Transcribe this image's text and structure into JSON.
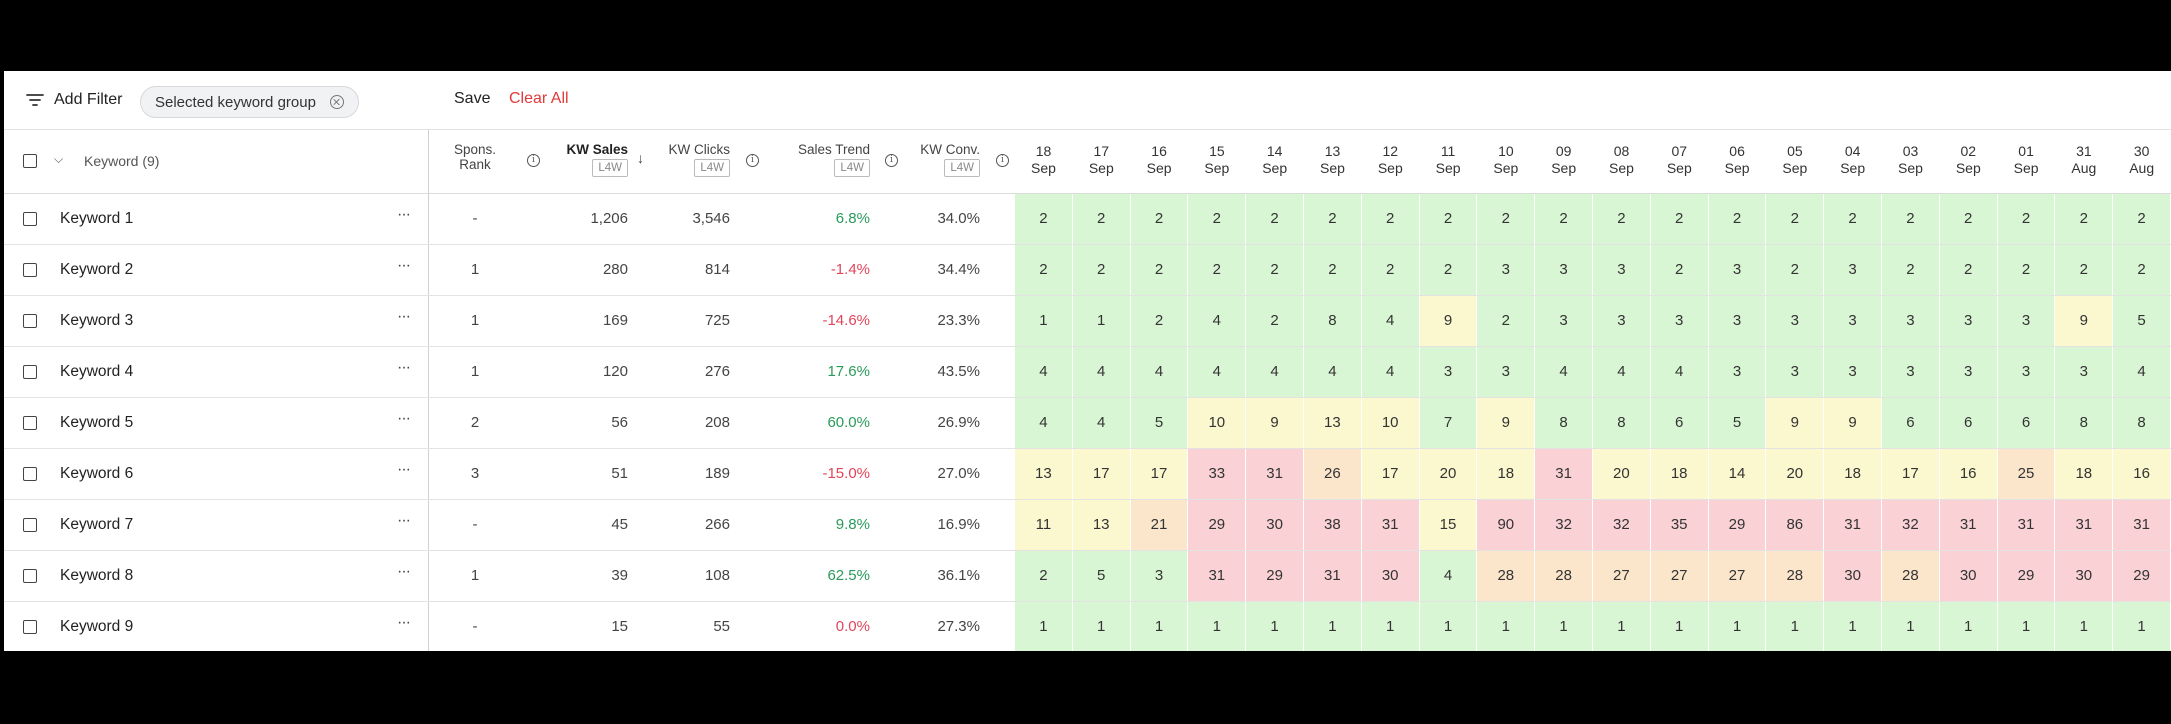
{
  "toolbar": {
    "add_filter": "Add Filter",
    "chip_label": "Selected keyword group",
    "save": "Save",
    "clear_all": "Clear All"
  },
  "header": {
    "keyword": "Keyword (9)",
    "spons_rank_1": "Spons.",
    "spons_rank_2": "Rank",
    "kw_sales": "KW Sales",
    "kw_clicks": "KW Clicks",
    "sales_trend": "Sales Trend",
    "kw_conv": "KW Conv.",
    "period": "L4W"
  },
  "dates": [
    [
      "18",
      "Sep"
    ],
    [
      "17",
      "Sep"
    ],
    [
      "16",
      "Sep"
    ],
    [
      "15",
      "Sep"
    ],
    [
      "14",
      "Sep"
    ],
    [
      "13",
      "Sep"
    ],
    [
      "12",
      "Sep"
    ],
    [
      "11",
      "Sep"
    ],
    [
      "10",
      "Sep"
    ],
    [
      "09",
      "Sep"
    ],
    [
      "08",
      "Sep"
    ],
    [
      "07",
      "Sep"
    ],
    [
      "06",
      "Sep"
    ],
    [
      "05",
      "Sep"
    ],
    [
      "04",
      "Sep"
    ],
    [
      "03",
      "Sep"
    ],
    [
      "02",
      "Sep"
    ],
    [
      "01",
      "Sep"
    ],
    [
      "31",
      "Aug"
    ],
    [
      "30",
      "Aug"
    ]
  ],
  "colors": {
    "green": "#d9f6d4",
    "yellow": "#fbf8cf",
    "peach": "#fbe6cc",
    "pink": "#fad2d6",
    "accent": "#e03a3a"
  },
  "rows": [
    {
      "name": "Keyword 1",
      "rank": "-",
      "sales": "1,206",
      "clicks": "3,546",
      "trend": "6.8%",
      "conv": "34.0%",
      "ranks": [
        2,
        2,
        2,
        2,
        2,
        2,
        2,
        2,
        2,
        2,
        2,
        2,
        2,
        2,
        2,
        2,
        2,
        2,
        2,
        2
      ]
    },
    {
      "name": "Keyword 2",
      "rank": "1",
      "sales": "280",
      "clicks": "814",
      "trend": "-1.4%",
      "conv": "34.4%",
      "ranks": [
        2,
        2,
        2,
        2,
        2,
        2,
        2,
        2,
        3,
        3,
        3,
        2,
        3,
        2,
        3,
        2,
        2,
        2,
        2,
        2
      ]
    },
    {
      "name": "Keyword 3",
      "rank": "1",
      "sales": "169",
      "clicks": "725",
      "trend": "-14.6%",
      "conv": "23.3%",
      "ranks": [
        1,
        1,
        2,
        4,
        2,
        8,
        4,
        9,
        2,
        3,
        3,
        3,
        3,
        3,
        3,
        3,
        3,
        3,
        9,
        5
      ]
    },
    {
      "name": "Keyword 4",
      "rank": "1",
      "sales": "120",
      "clicks": "276",
      "trend": "17.6%",
      "conv": "43.5%",
      "ranks": [
        4,
        4,
        4,
        4,
        4,
        4,
        4,
        3,
        3,
        4,
        4,
        4,
        3,
        3,
        3,
        3,
        3,
        3,
        3,
        4
      ]
    },
    {
      "name": "Keyword 5",
      "rank": "2",
      "sales": "56",
      "clicks": "208",
      "trend": "60.0%",
      "conv": "26.9%",
      "ranks": [
        4,
        4,
        5,
        10,
        9,
        13,
        10,
        7,
        9,
        8,
        8,
        6,
        5,
        9,
        9,
        6,
        6,
        6,
        8,
        8
      ]
    },
    {
      "name": "Keyword 6",
      "rank": "3",
      "sales": "51",
      "clicks": "189",
      "trend": "-15.0%",
      "conv": "27.0%",
      "ranks": [
        13,
        17,
        17,
        33,
        31,
        26,
        17,
        20,
        18,
        31,
        20,
        18,
        14,
        20,
        18,
        17,
        16,
        25,
        18,
        16
      ]
    },
    {
      "name": "Keyword 7",
      "rank": "-",
      "sales": "45",
      "clicks": "266",
      "trend": "9.8%",
      "conv": "16.9%",
      "ranks": [
        11,
        13,
        21,
        29,
        30,
        38,
        31,
        15,
        90,
        32,
        32,
        35,
        29,
        86,
        31,
        32,
        31,
        31,
        31,
        31
      ]
    },
    {
      "name": "Keyword 8",
      "rank": "1",
      "sales": "39",
      "clicks": "108",
      "trend": "62.5%",
      "conv": "36.1%",
      "ranks": [
        2,
        5,
        3,
        31,
        29,
        31,
        30,
        4,
        28,
        28,
        27,
        27,
        27,
        28,
        30,
        28,
        30,
        29,
        30,
        29
      ]
    },
    {
      "name": "Keyword 9",
      "rank": "-",
      "sales": "15",
      "clicks": "55",
      "trend": "0.0%",
      "conv": "27.3%",
      "ranks": [
        1,
        1,
        1,
        1,
        1,
        1,
        1,
        1,
        1,
        1,
        1,
        1,
        1,
        1,
        1,
        1,
        1,
        1,
        1,
        1
      ]
    }
  ]
}
